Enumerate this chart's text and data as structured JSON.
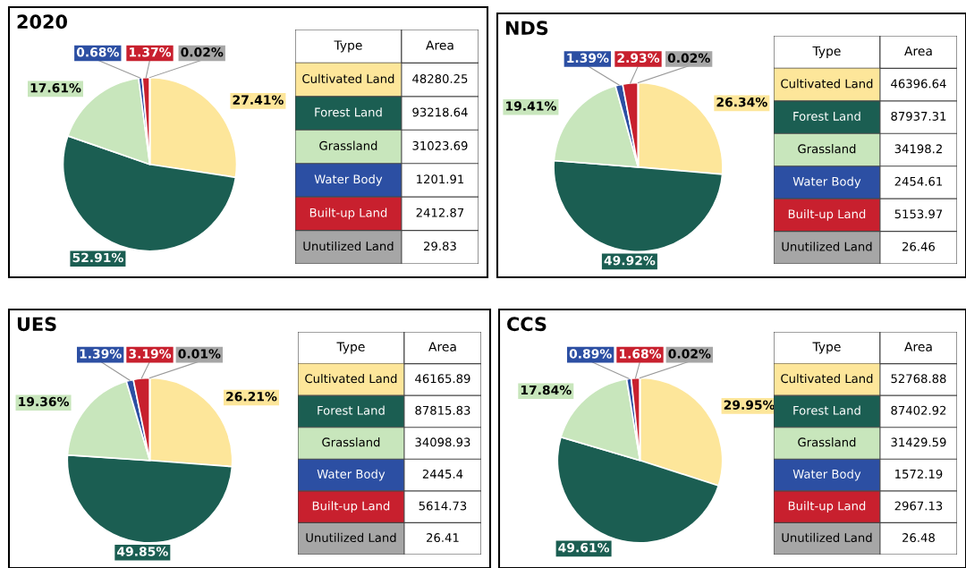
{
  "chart_data": [
    {
      "type": "pie",
      "title": "2020",
      "categories": [
        null,
        null,
        null,
        null,
        null,
        null
      ],
      "values": [
        27.41,
        52.91,
        17.61,
        0.68,
        1.37,
        0.02
      ],
      "value_labels": [
        "27.41%",
        "52.91%",
        "17.61%",
        "0.68%",
        "1.37%",
        "0.02%"
      ],
      "colors": [
        "#fde69a",
        "#1b5e52",
        "#c8e6bc",
        "#2c4fa3",
        "#c8202e",
        "#a6a6a6"
      ]
    },
    {
      "type": "other",
      "categories": [
        "Cultivated Land",
        "Forest Land",
        "Grassland",
        "Water Body",
        "Built-up Land",
        "Unutilized Land"
      ],
      "values": [
        48280.25,
        93218.64,
        31023.69,
        1201.91,
        2412.87,
        29.83
      ],
      "colors": [
        "#fde69a",
        "#1b5e52",
        "#c8e6bc",
        "#2c4fa3",
        "#c8202e",
        "#a6a6a6"
      ],
      "data_labels": true,
      "annotations": [
        "Type",
        "Area"
      ]
    },
    {
      "type": "pie",
      "title": "NDS",
      "categories": [
        null,
        null,
        null,
        null,
        null,
        null
      ],
      "values": [
        26.34,
        49.92,
        19.41,
        1.39,
        2.93,
        0.02
      ],
      "value_labels": [
        "26.34%",
        "49.92%",
        "19.41%",
        "1.39%",
        "2.93%",
        "0.02%"
      ],
      "colors": [
        "#fde69a",
        "#1b5e52",
        "#c8e6bc",
        "#2c4fa3",
        "#c8202e",
        "#a6a6a6"
      ]
    },
    {
      "type": "other",
      "categories": [
        "Cultivated Land",
        "Forest Land",
        "Grassland",
        "Water Body",
        "Built-up Land",
        "Unutilized Land"
      ],
      "values": [
        46396.64,
        87937.31,
        34198.2,
        2454.61,
        5153.97,
        26.46
      ],
      "colors": [
        "#fde69a",
        "#1b5e52",
        "#c8e6bc",
        "#2c4fa3",
        "#c8202e",
        "#a6a6a6"
      ],
      "data_labels": true,
      "annotations": [
        "Type",
        "Area"
      ]
    },
    {
      "type": "pie",
      "title": "UES",
      "categories": [
        null,
        null,
        null,
        null,
        null,
        null
      ],
      "values": [
        26.21,
        49.85,
        19.36,
        1.39,
        3.19,
        0.01
      ],
      "value_labels": [
        "26.21%",
        "49.85%",
        "19.36%",
        "1.39%",
        "3.19%",
        "0.01%"
      ],
      "colors": [
        "#fde69a",
        "#1b5e52",
        "#c8e6bc",
        "#2c4fa3",
        "#c8202e",
        "#a6a6a6"
      ]
    },
    {
      "type": "other",
      "categories": [
        "Cultivated Land",
        "Forest Land",
        "Grassland",
        "Water Body",
        "Built-up Land",
        "Unutilized Land"
      ],
      "values": [
        46165.89,
        87815.83,
        34098.93,
        2445.4,
        5614.73,
        26.41
      ],
      "colors": [
        "#fde69a",
        "#1b5e52",
        "#c8e6bc",
        "#2c4fa3",
        "#c8202e",
        "#a6a6a6"
      ],
      "data_labels": true,
      "annotations": [
        "Type",
        "Area"
      ]
    },
    {
      "type": "pie",
      "title": "CCS",
      "categories": [
        null,
        null,
        null,
        null,
        null,
        null
      ],
      "values": [
        29.95,
        49.61,
        17.84,
        0.89,
        1.68,
        0.02
      ],
      "value_labels": [
        "29.95%",
        "49.61%",
        "17.84%",
        "0.89%",
        "1.68%",
        "0.02%"
      ],
      "colors": [
        "#fde69a",
        "#1b5e52",
        "#c8e6bc",
        "#2c4fa3",
        "#c8202e",
        "#a6a6a6"
      ]
    },
    {
      "type": "other",
      "categories": [
        "Cultivated Land",
        "Forest Land",
        "Grassland",
        "Water Body",
        "Built-up Land",
        "Unutilized Land"
      ],
      "values": [
        52768.88,
        87402.92,
        31429.59,
        1572.19,
        2967.13,
        26.48
      ],
      "colors": [
        "#fde69a",
        "#1b5e52",
        "#c8e6bc",
        "#2c4fa3",
        "#c8202e",
        "#a6a6a6"
      ],
      "data_labels": true,
      "annotations": [
        "Type",
        "Area"
      ]
    }
  ]
}
